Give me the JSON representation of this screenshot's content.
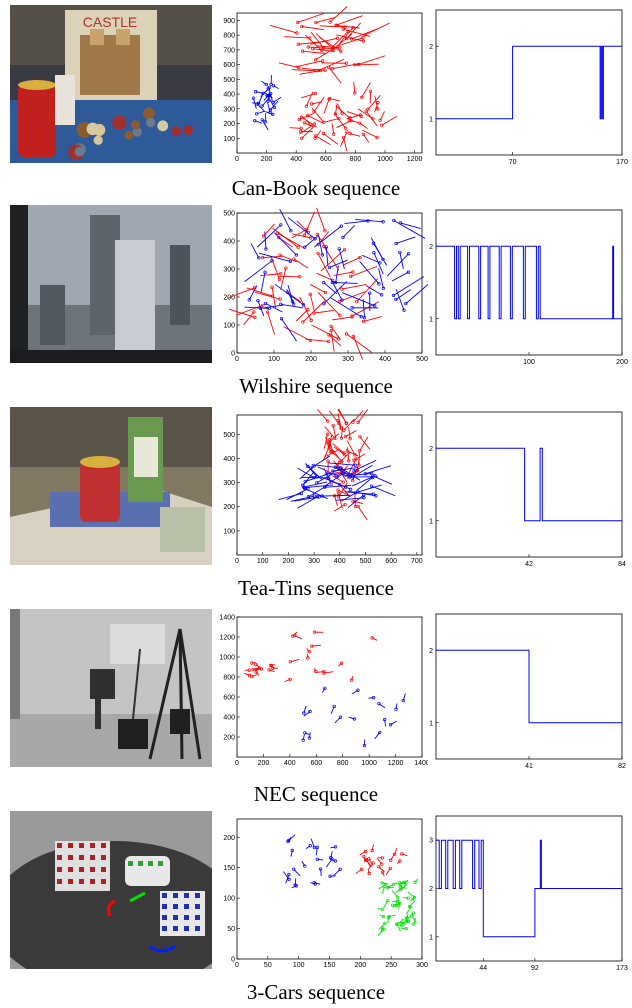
{
  "figure": {
    "rows": [
      {
        "caption": "Can-Book sequence",
        "photo": {
          "label": "CASTLE"
        },
        "flow": {
          "xticks": [
            "0",
            "200",
            "400",
            "600",
            "800",
            "1000",
            "1200"
          ],
          "yticks": [
            "100",
            "200",
            "300",
            "400",
            "500",
            "600",
            "700",
            "800",
            "900"
          ],
          "xlim": [
            0,
            1250
          ],
          "ylim": [
            0,
            950
          ]
        },
        "step": {
          "xticks": [
            "70",
            "170"
          ],
          "yticks": [
            "1",
            "2"
          ],
          "xlim": [
            0,
            170
          ],
          "ylim": [
            0.5,
            2.5
          ],
          "segments": [
            [
              0,
              1
            ],
            [
              70,
              1
            ],
            [
              70,
              2
            ],
            [
              150,
              2
            ],
            [
              150,
              1
            ],
            [
              151,
              1
            ],
            [
              151,
              2
            ],
            [
              152,
              2
            ],
            [
              152,
              1
            ],
            [
              153,
              1
            ],
            [
              153,
              2
            ],
            [
              170,
              2
            ]
          ]
        }
      },
      {
        "caption": "Wilshire sequence",
        "flow": {
          "xticks": [
            "0",
            "100",
            "200",
            "300",
            "400",
            "500"
          ],
          "yticks": [
            "0",
            "100",
            "200",
            "300",
            "400",
            "500"
          ],
          "xlim": [
            0,
            500
          ],
          "ylim": [
            0,
            500
          ]
        },
        "step": {
          "xticks": [
            "100",
            "200"
          ],
          "yticks": [
            "1",
            "2"
          ],
          "xlim": [
            0,
            200
          ],
          "ylim": [
            0.5,
            2.5
          ],
          "segments": [
            [
              0,
              2
            ],
            [
              20,
              2
            ],
            [
              20,
              1
            ],
            [
              22,
              1
            ],
            [
              22,
              2
            ],
            [
              24,
              2
            ],
            [
              24,
              1
            ],
            [
              26,
              1
            ],
            [
              26,
              2
            ],
            [
              34,
              2
            ],
            [
              34,
              1
            ],
            [
              36,
              1
            ],
            [
              36,
              2
            ],
            [
              46,
              2
            ],
            [
              46,
              1
            ],
            [
              48,
              1
            ],
            [
              48,
              2
            ],
            [
              56,
              2
            ],
            [
              56,
              1
            ],
            [
              58,
              1
            ],
            [
              58,
              2
            ],
            [
              68,
              2
            ],
            [
              68,
              1
            ],
            [
              70,
              1
            ],
            [
              70,
              2
            ],
            [
              80,
              2
            ],
            [
              80,
              1
            ],
            [
              82,
              1
            ],
            [
              82,
              2
            ],
            [
              94,
              2
            ],
            [
              94,
              1
            ],
            [
              96,
              1
            ],
            [
              96,
              2
            ],
            [
              108,
              2
            ],
            [
              108,
              1
            ],
            [
              110,
              1
            ],
            [
              110,
              2
            ],
            [
              112,
              2
            ],
            [
              112,
              1
            ],
            [
              190,
              1
            ],
            [
              190,
              2
            ],
            [
              191,
              2
            ],
            [
              191,
              1
            ],
            [
              200,
              1
            ]
          ]
        }
      },
      {
        "caption": "Tea-Tins sequence",
        "flow": {
          "xticks": [
            "0",
            "100",
            "200",
            "300",
            "400",
            "500",
            "600",
            "700"
          ],
          "yticks": [
            "100",
            "200",
            "300",
            "400",
            "500"
          ],
          "xlim": [
            0,
            720
          ],
          "ylim": [
            0,
            580
          ]
        },
        "step": {
          "xticks": [
            "42",
            "84"
          ],
          "yticks": [
            "1",
            "2"
          ],
          "xlim": [
            0,
            84
          ],
          "ylim": [
            0.5,
            2.5
          ],
          "segments": [
            [
              0,
              2
            ],
            [
              40,
              2
            ],
            [
              40,
              1
            ],
            [
              47,
              1
            ],
            [
              47,
              2
            ],
            [
              48,
              2
            ],
            [
              48,
              1
            ],
            [
              84,
              1
            ]
          ]
        }
      },
      {
        "caption": "NEC sequence",
        "flow": {
          "xticks": [
            "0",
            "200",
            "400",
            "600",
            "800",
            "1000",
            "1200",
            "1400"
          ],
          "yticks": [
            "200",
            "400",
            "600",
            "800",
            "1000",
            "1200",
            "1400"
          ],
          "xlim": [
            0,
            1400
          ],
          "ylim": [
            0,
            1400
          ]
        },
        "step": {
          "xticks": [
            "41",
            "82"
          ],
          "yticks": [
            "1",
            "2"
          ],
          "xlim": [
            0,
            82
          ],
          "ylim": [
            0.5,
            2.5
          ],
          "segments": [
            [
              0,
              2
            ],
            [
              41,
              2
            ],
            [
              41,
              1
            ],
            [
              82,
              1
            ]
          ]
        }
      },
      {
        "caption": "3-Cars sequence",
        "flow": {
          "xticks": [
            "0",
            "50",
            "100",
            "150",
            "200",
            "250",
            "300"
          ],
          "yticks": [
            "0",
            "50",
            "100",
            "150",
            "200"
          ],
          "xlim": [
            0,
            300
          ],
          "ylim": [
            0,
            230
          ]
        },
        "step": {
          "xticks": [
            "44",
            "92",
            "173"
          ],
          "yticks": [
            "1",
            "2",
            "3"
          ],
          "xlim": [
            0,
            173
          ],
          "ylim": [
            0.5,
            3.5
          ],
          "segments": [
            [
              0,
              3
            ],
            [
              3,
              3
            ],
            [
              3,
              2
            ],
            [
              5,
              2
            ],
            [
              5,
              3
            ],
            [
              9,
              3
            ],
            [
              9,
              2
            ],
            [
              11,
              2
            ],
            [
              11,
              3
            ],
            [
              16,
              3
            ],
            [
              16,
              2
            ],
            [
              18,
              2
            ],
            [
              18,
              3
            ],
            [
              22,
              3
            ],
            [
              22,
              2
            ],
            [
              24,
              2
            ],
            [
              24,
              3
            ],
            [
              34,
              3
            ],
            [
              34,
              2
            ],
            [
              36,
              2
            ],
            [
              36,
              3
            ],
            [
              40,
              3
            ],
            [
              40,
              2
            ],
            [
              42,
              2
            ],
            [
              42,
              3
            ],
            [
              44,
              3
            ],
            [
              44,
              1
            ],
            [
              92,
              1
            ],
            [
              92,
              2
            ],
            [
              97,
              2
            ],
            [
              97,
              3
            ],
            [
              98,
              3
            ],
            [
              98,
              2
            ],
            [
              173,
              2
            ]
          ]
        }
      }
    ]
  },
  "colors": {
    "red": "#ff0000",
    "blue": "#0000ff",
    "green": "#00e000",
    "line": "#0000ff"
  }
}
